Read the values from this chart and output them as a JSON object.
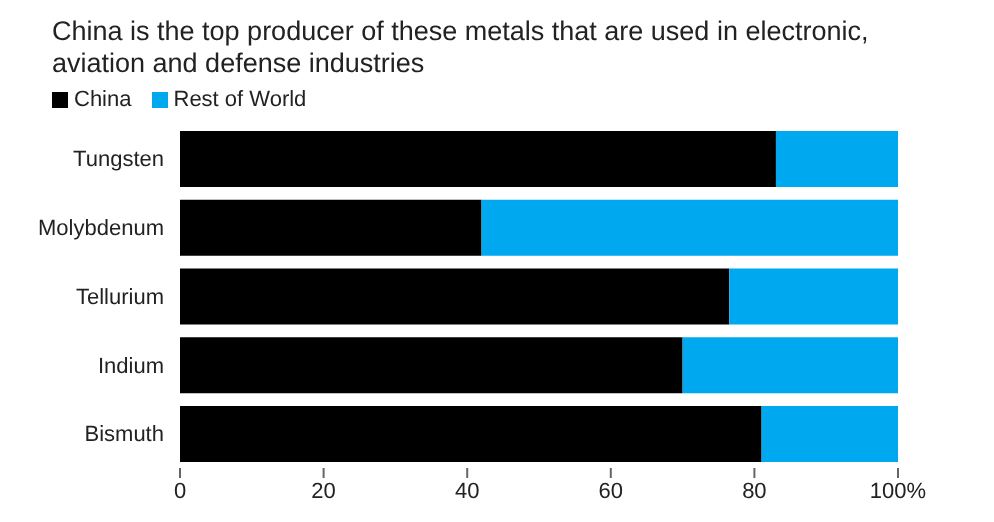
{
  "chart_data": {
    "type": "bar",
    "orientation": "horizontal",
    "stacked": true,
    "title": "China is the top producer of these metals that are used in electronic, aviation and defense industries",
    "categories": [
      "Tungsten",
      "Molybdenum",
      "Tellurium",
      "Indium",
      "Bismuth"
    ],
    "series": [
      {
        "name": "China",
        "color": "#000000",
        "values": [
          83,
          42,
          76.5,
          70,
          81
        ]
      },
      {
        "name": "Rest of World",
        "color": "#00a8f0",
        "values": [
          17,
          58,
          23.5,
          30,
          19
        ]
      }
    ],
    "xlim": [
      0,
      100
    ],
    "xticks": [
      0,
      20,
      40,
      60,
      80,
      {
        "value": 100,
        "label": "100%"
      }
    ],
    "grid": false,
    "legend": "top left"
  }
}
